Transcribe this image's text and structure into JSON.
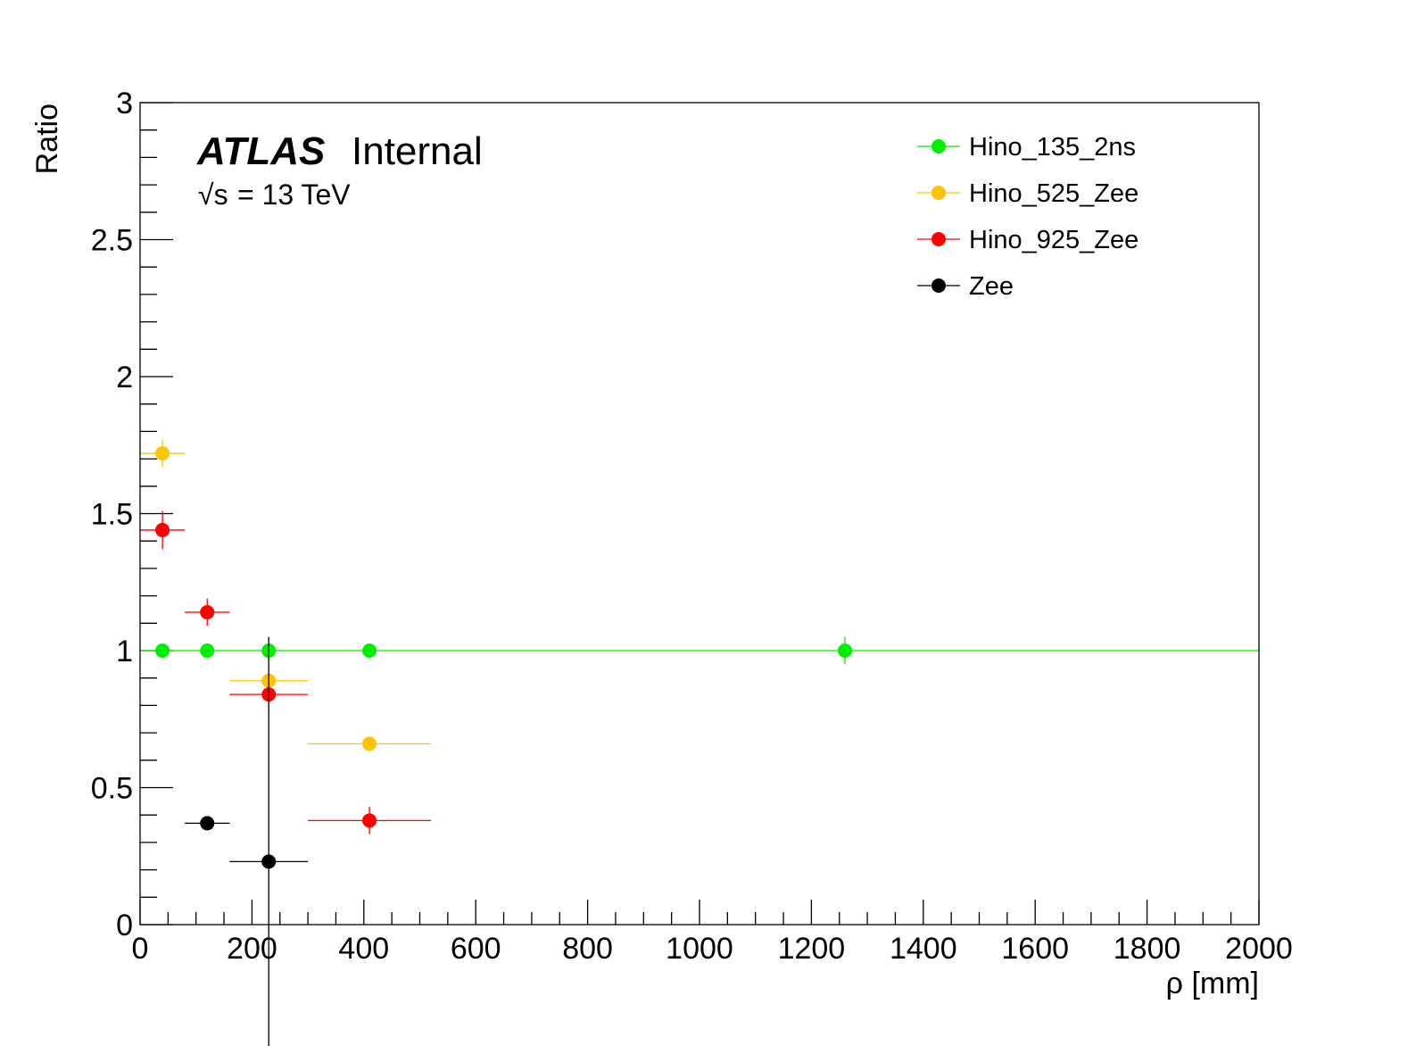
{
  "chart_data": {
    "type": "scatter",
    "xlabel": "ρ [mm]",
    "ylabel": "Ratio",
    "xlim": [
      0,
      2000
    ],
    "ylim": [
      0,
      3
    ],
    "x_ticks": [
      "0",
      "200",
      "400",
      "600",
      "800",
      "1000",
      "1200",
      "1400",
      "1600",
      "1800",
      "2000"
    ],
    "y_ticks": [
      "0",
      "0.5",
      "1",
      "1.5",
      "2",
      "2.5",
      "3"
    ],
    "grid": false,
    "legend_position": "top-right",
    "annotations": {
      "atlas_bold": "ATLAS",
      "atlas_status": "Internal",
      "energy_sqrt": "√s",
      "energy_rest": "= 13 TeV"
    },
    "series": [
      {
        "name": "Hino_135_2ns",
        "color": "#00ee00",
        "points": [
          {
            "x": 40,
            "y": 1.0,
            "xlo": 0,
            "xhi": 80,
            "yerr": 0.0
          },
          {
            "x": 120,
            "y": 1.0,
            "xlo": 80,
            "xhi": 160,
            "yerr": 0.0
          },
          {
            "x": 230,
            "y": 1.0,
            "xlo": 160,
            "xhi": 300,
            "yerr": 0.0
          },
          {
            "x": 410,
            "y": 1.0,
            "xlo": 300,
            "xhi": 520,
            "yerr": 0.0
          },
          {
            "x": 1260,
            "y": 1.0,
            "xlo": 520,
            "xhi": 2000,
            "yerr": 0.05
          }
        ]
      },
      {
        "name": "Hino_525_Zee",
        "color": "#ffc400",
        "points": [
          {
            "x": 40,
            "y": 1.72,
            "xlo": 0,
            "xhi": 80,
            "yerr": 0.05
          },
          {
            "x": 120,
            "y": 1.14,
            "xlo": 80,
            "xhi": 160,
            "yerr": 0.03
          },
          {
            "x": 230,
            "y": 0.89,
            "xlo": 160,
            "xhi": 300,
            "yerr": 0.02
          },
          {
            "x": 410,
            "y": 0.66,
            "xlo": 300,
            "xhi": 520,
            "yerr": 0.02
          }
        ]
      },
      {
        "name": "Hino_925_Zee",
        "color": "#ff0000",
        "points": [
          {
            "x": 40,
            "y": 1.44,
            "xlo": 0,
            "xhi": 80,
            "yerr": 0.07
          },
          {
            "x": 120,
            "y": 1.14,
            "xlo": 80,
            "xhi": 160,
            "yerr": 0.05
          },
          {
            "x": 230,
            "y": 0.84,
            "xlo": 160,
            "xhi": 300,
            "yerr": 0.03
          },
          {
            "x": 410,
            "y": 0.38,
            "xlo": 300,
            "xhi": 520,
            "yerr": 0.05
          }
        ]
      },
      {
        "name": "Zee",
        "color": "#000000",
        "points": [
          {
            "x": 120,
            "y": 0.37,
            "xlo": 80,
            "xhi": 160,
            "yerr": 0.0
          },
          {
            "x": 230,
            "y": 0.23,
            "xlo": 160,
            "xhi": 300,
            "yerr": 0.82
          }
        ]
      }
    ]
  }
}
